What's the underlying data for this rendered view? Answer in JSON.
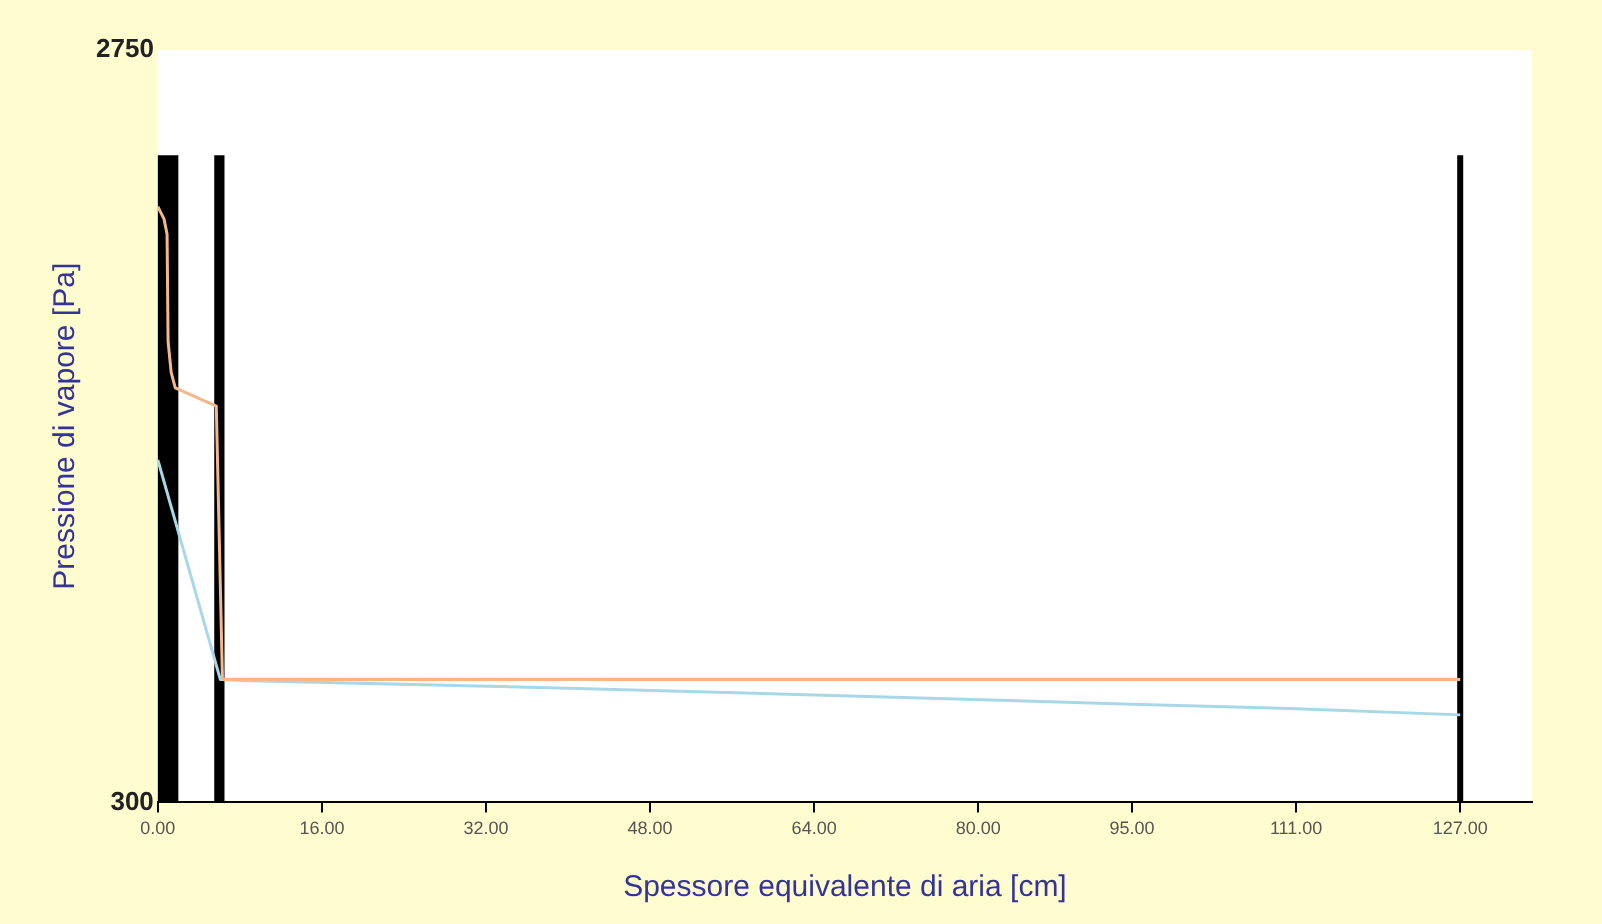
{
  "chart_data": {
    "type": "line",
    "xlabel": "Spessore equivalente di aria [cm]",
    "ylabel": "Pressione di vapore [Pa]",
    "xlim": [
      0,
      134
    ],
    "ylim": [
      300,
      2750
    ],
    "xticks": [
      {
        "value": 0,
        "label": "0.00"
      },
      {
        "value": 16,
        "label": "16.00"
      },
      {
        "value": 32,
        "label": "32.00"
      },
      {
        "value": 48,
        "label": "48.00"
      },
      {
        "value": 64,
        "label": "64.00"
      },
      {
        "value": 80,
        "label": "80.00"
      },
      {
        "value": 95,
        "label": "95.00"
      },
      {
        "value": 111,
        "label": "111.00"
      },
      {
        "value": 127,
        "label": "127.00"
      }
    ],
    "yticks": [
      300,
      2750
    ],
    "series": [
      {
        "color": "#f5b88a",
        "x": [
          0,
          0.6,
          0.9,
          1.0,
          1.3,
          1.7,
          5.7,
          6.3,
          127
        ],
        "values": [
          2240,
          2200,
          2150,
          1800,
          1700,
          1650,
          1590,
          700,
          700
        ]
      },
      {
        "color": "#a8d8e8",
        "x": [
          0,
          6.1,
          10,
          40,
          64,
          95,
          111,
          127
        ],
        "values": [
          1415,
          700,
          695,
          672,
          650,
          620,
          605,
          585
        ]
      }
    ],
    "bands": [
      {
        "axis": "x",
        "from": 0,
        "to": 2,
        "color": "#000000"
      },
      {
        "axis": "x",
        "from": 5.5,
        "to": 6.5,
        "color": "#000000"
      }
    ],
    "ref_lines": [
      {
        "axis": "x",
        "value": 127,
        "color": "#000000"
      }
    ],
    "grid": false,
    "legend": false,
    "marker": "none",
    "line_style": "solid"
  }
}
